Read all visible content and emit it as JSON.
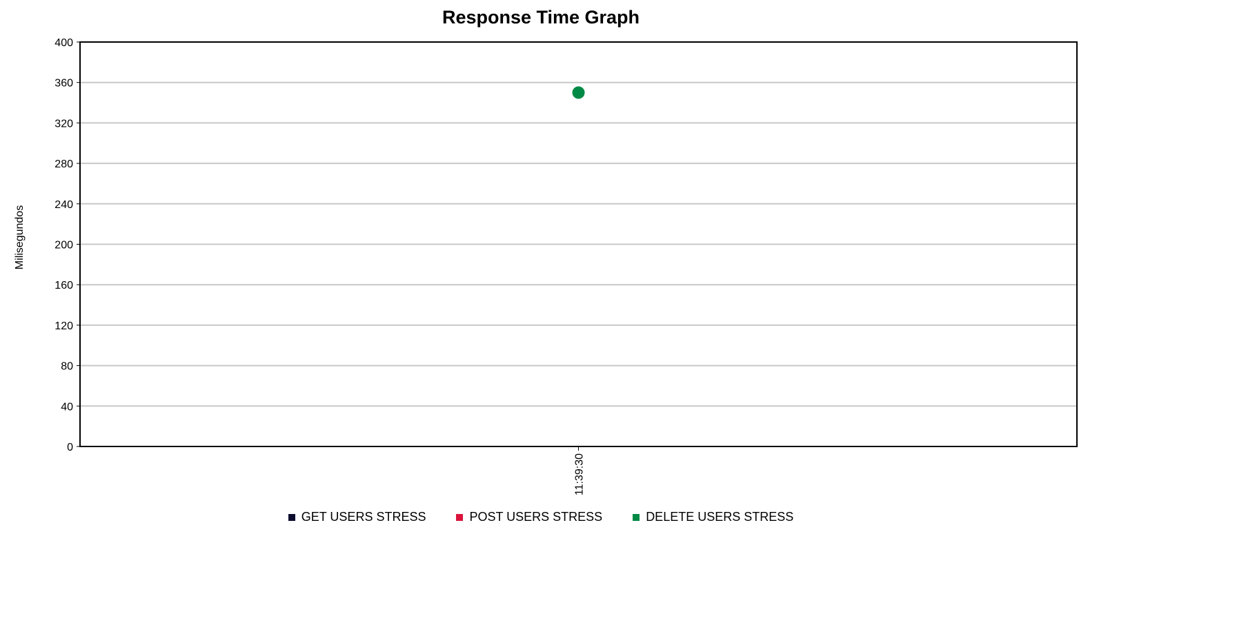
{
  "chart_data": {
    "type": "scatter",
    "title": "Response Time Graph",
    "xlabel": "",
    "ylabel": "Milisegundos",
    "ylim": [
      0,
      400
    ],
    "yticks": [
      0,
      40,
      80,
      120,
      160,
      200,
      240,
      280,
      320,
      360,
      400
    ],
    "categories": [
      "11:39:30"
    ],
    "grid": true,
    "legend_position": "bottom",
    "series": [
      {
        "name": "GET USERS STRESS",
        "color": "#0b0b2e",
        "values": [
          null
        ]
      },
      {
        "name": "POST USERS STRESS",
        "color": "#dc143c",
        "values": [
          null
        ]
      },
      {
        "name": "DELETE USERS STRESS",
        "color": "#008a45",
        "values": [
          350
        ]
      }
    ]
  }
}
